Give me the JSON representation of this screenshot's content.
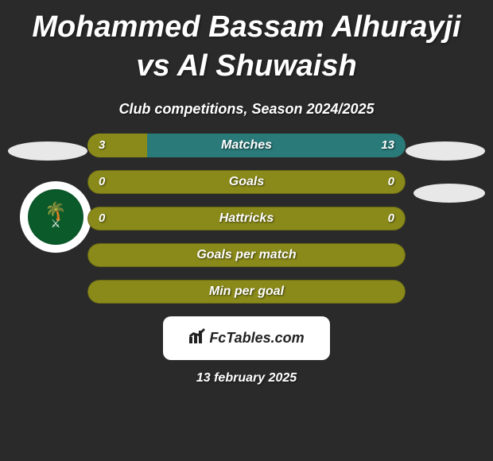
{
  "title": "Mohammed Bassam Alhurayji vs Al Shuwaish",
  "subtitle": "Club competitions, Season 2024/2025",
  "date": "13 february 2025",
  "logo_text": "FcTables.com",
  "colors": {
    "olive": "#8a8a1a",
    "olive_dark": "#6a6a15",
    "bar_track": "#3a3a3a",
    "teal": "#2a7a7a"
  },
  "stats": [
    {
      "label": "Matches",
      "left_val": "3",
      "right_val": "13",
      "left_pct": 18.75,
      "right_pct": 81.25,
      "left_color": "#8a8a1a",
      "right_color": "#2a7a7a",
      "track_color": "#8a8a1a",
      "show_vals": true
    },
    {
      "label": "Goals",
      "left_val": "0",
      "right_val": "0",
      "left_pct": 0,
      "right_pct": 0,
      "left_color": "#8a8a1a",
      "right_color": "#2a7a7a",
      "track_color": "#8a8a1a",
      "show_vals": true
    },
    {
      "label": "Hattricks",
      "left_val": "0",
      "right_val": "0",
      "left_pct": 0,
      "right_pct": 0,
      "left_color": "#8a8a1a",
      "right_color": "#2a7a7a",
      "track_color": "#8a8a1a",
      "show_vals": true
    },
    {
      "label": "Goals per match",
      "left_val": "",
      "right_val": "",
      "left_pct": 0,
      "right_pct": 0,
      "left_color": "#8a8a1a",
      "right_color": "#2a7a7a",
      "track_color": "#8a8a1a",
      "show_vals": false
    },
    {
      "label": "Min per goal",
      "left_val": "",
      "right_val": "",
      "left_pct": 0,
      "right_pct": 0,
      "left_color": "#8a8a1a",
      "right_color": "#2a7a7a",
      "track_color": "#8a8a1a",
      "show_vals": false
    }
  ]
}
